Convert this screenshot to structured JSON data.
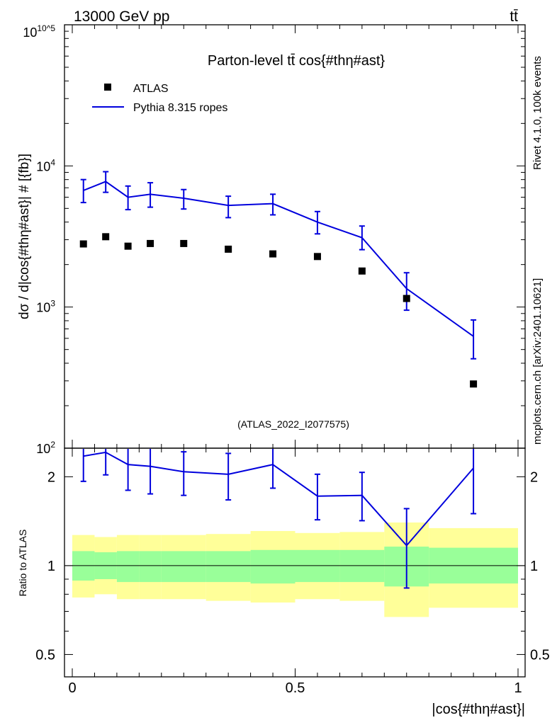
{
  "header": {
    "energy": "13000 GeV pp",
    "process": "tt̄"
  },
  "side_labels": {
    "rivet": "Rivet 4.1.0,  100k events",
    "source": "mcplots.cern.ch [arXiv:2401.10621]"
  },
  "colors": {
    "mc": "#0000dd",
    "data": "#000000",
    "band_inner": "#99ff99",
    "band_outer": "#ffff99",
    "watermark": "#999999"
  },
  "chart_data": [
    {
      "type": "scatter",
      "title": "Parton-level tt̄ cos{#thη#ast}",
      "ylabel": "dσ / d|cos{#thη#ast}| # [{fb}]",
      "xlabel": "|cos{#thη#ast}|",
      "yscale": "log",
      "ylim": [
        100,
        100000
      ],
      "xlim": [
        0,
        1
      ],
      "ytick_labels": [
        "10^2",
        "10^3",
        "10^4",
        "10^5"
      ],
      "watermark": "(ATLAS_2022_I2077575)",
      "legend": {
        "placement": "top-left",
        "entries": [
          "ATLAS",
          "Pythia 8.315 ropes"
        ]
      },
      "bin_edges": [
        0,
        0.05,
        0.1,
        0.15,
        0.2,
        0.3,
        0.4,
        0.5,
        0.6,
        0.7,
        0.8,
        1.0
      ],
      "x": [
        0.025,
        0.075,
        0.125,
        0.175,
        0.25,
        0.35,
        0.45,
        0.55,
        0.65,
        0.75,
        0.9
      ],
      "series": [
        {
          "name": "ATLAS",
          "style": "markers",
          "values": [
            2800,
            3150,
            2700,
            2820,
            2820,
            2570,
            2380,
            2280,
            1800,
            1150,
            285
          ]
        },
        {
          "name": "Pythia 8.315 ropes",
          "style": "line",
          "values": [
            6700,
            7750,
            6000,
            6300,
            5900,
            5250,
            5400,
            4000,
            3100,
            1350,
            620
          ],
          "err_low": [
            5500,
            6500,
            4900,
            5100,
            4950,
            4300,
            4500,
            3300,
            2550,
            950,
            430
          ],
          "err_high": [
            8000,
            9100,
            7200,
            7600,
            6800,
            6100,
            6300,
            4750,
            3750,
            1750,
            810
          ]
        }
      ]
    },
    {
      "type": "line",
      "ylabel": "Ratio to ATLAS",
      "xlabel": "|cos{#thη#ast}|",
      "yscale": "log",
      "ylim": [
        0.42,
        2.5
      ],
      "xlim": [
        0,
        1
      ],
      "ytick_values": [
        0.5,
        1,
        2
      ],
      "ytick_labels": [
        "0.5",
        "1",
        "2"
      ],
      "xtick_values": [
        0,
        0.5,
        1
      ],
      "xtick_labels": [
        "0",
        "0.5",
        "1"
      ],
      "reference_line": 1,
      "bin_edges": [
        0,
        0.05,
        0.1,
        0.15,
        0.2,
        0.3,
        0.4,
        0.5,
        0.6,
        0.7,
        0.8,
        1.0
      ],
      "x": [
        0.025,
        0.075,
        0.125,
        0.175,
        0.25,
        0.35,
        0.45,
        0.55,
        0.65,
        0.75,
        0.9
      ],
      "band_inner_low": [
        0.89,
        0.9,
        0.88,
        0.88,
        0.88,
        0.88,
        0.87,
        0.88,
        0.88,
        0.85,
        0.87
      ],
      "band_inner_high": [
        1.12,
        1.11,
        1.12,
        1.12,
        1.12,
        1.12,
        1.13,
        1.13,
        1.13,
        1.16,
        1.15
      ],
      "band_outer_low": [
        0.78,
        0.8,
        0.77,
        0.77,
        0.77,
        0.76,
        0.75,
        0.77,
        0.76,
        0.67,
        0.72
      ],
      "band_outer_high": [
        1.27,
        1.25,
        1.27,
        1.27,
        1.27,
        1.28,
        1.31,
        1.29,
        1.3,
        1.4,
        1.34
      ],
      "series": [
        {
          "name": "Pythia 8.315 ropes",
          "values": [
            2.35,
            2.42,
            2.2,
            2.17,
            2.08,
            2.04,
            2.2,
            1.72,
            1.73,
            1.17,
            2.14
          ],
          "err_low": [
            1.93,
            2.03,
            1.8,
            1.75,
            1.73,
            1.67,
            1.83,
            1.43,
            1.42,
            0.84,
            1.5
          ],
          "err_high": [
            2.7,
            2.8,
            2.6,
            2.6,
            2.43,
            2.4,
            2.55,
            2.04,
            2.07,
            1.56,
            2.8
          ]
        }
      ]
    }
  ]
}
